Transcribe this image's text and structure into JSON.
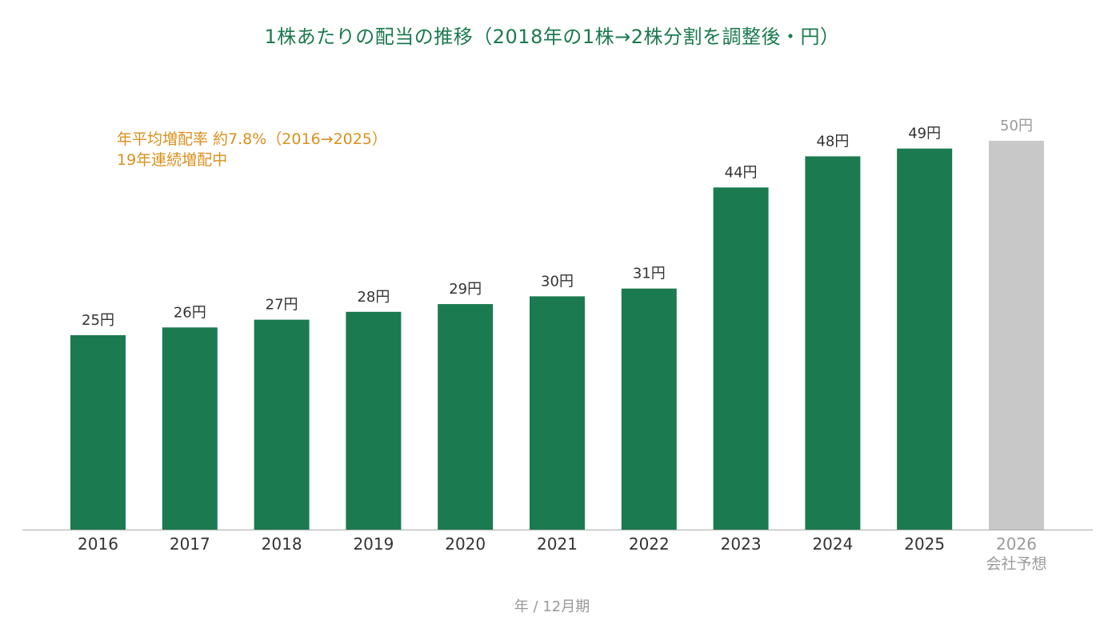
{
  "title": "1株あたりの配当の推移（2018年の1株→2株分割を調整後・円）",
  "annotation": {
    "line1": "年平均増配率 約7.8%（2016→2025）",
    "line2": "19年連続増配中"
  },
  "xlabel": "年 / 12月期",
  "colors": {
    "actual": "#1b7a4f",
    "forecast": "#c8c8c8",
    "label_actual": "#333333",
    "label_forecast": "#9a9a9a",
    "axis": "#aaaaaa",
    "title": "#1b7a4f",
    "annotation": "#d9901e"
  },
  "chart_data": {
    "type": "bar",
    "title": "1株あたりの配当の推移（2018年の1株→2株分割を調整後・円）",
    "xlabel": "年 / 12月期",
    "ylabel": "",
    "unit": "円",
    "grid": false,
    "categories": [
      "2016",
      "2017",
      "2018",
      "2019",
      "2020",
      "2021",
      "2022",
      "2023",
      "2024",
      "2025",
      "2026"
    ],
    "category_sublabels": [
      "",
      "",
      "",
      "",
      "",
      "",
      "",
      "",
      "",
      "",
      "会社予想"
    ],
    "values": [
      25,
      26,
      27,
      28,
      29,
      30,
      31,
      44,
      48,
      49,
      50
    ],
    "data_labels": [
      "25円",
      "26円",
      "27円",
      "28円",
      "29円",
      "30円",
      "31円",
      "44円",
      "48円",
      "49円",
      "50円"
    ],
    "forecast": [
      false,
      false,
      false,
      false,
      false,
      false,
      false,
      false,
      false,
      false,
      true
    ],
    "ylim": [
      0,
      50
    ]
  }
}
